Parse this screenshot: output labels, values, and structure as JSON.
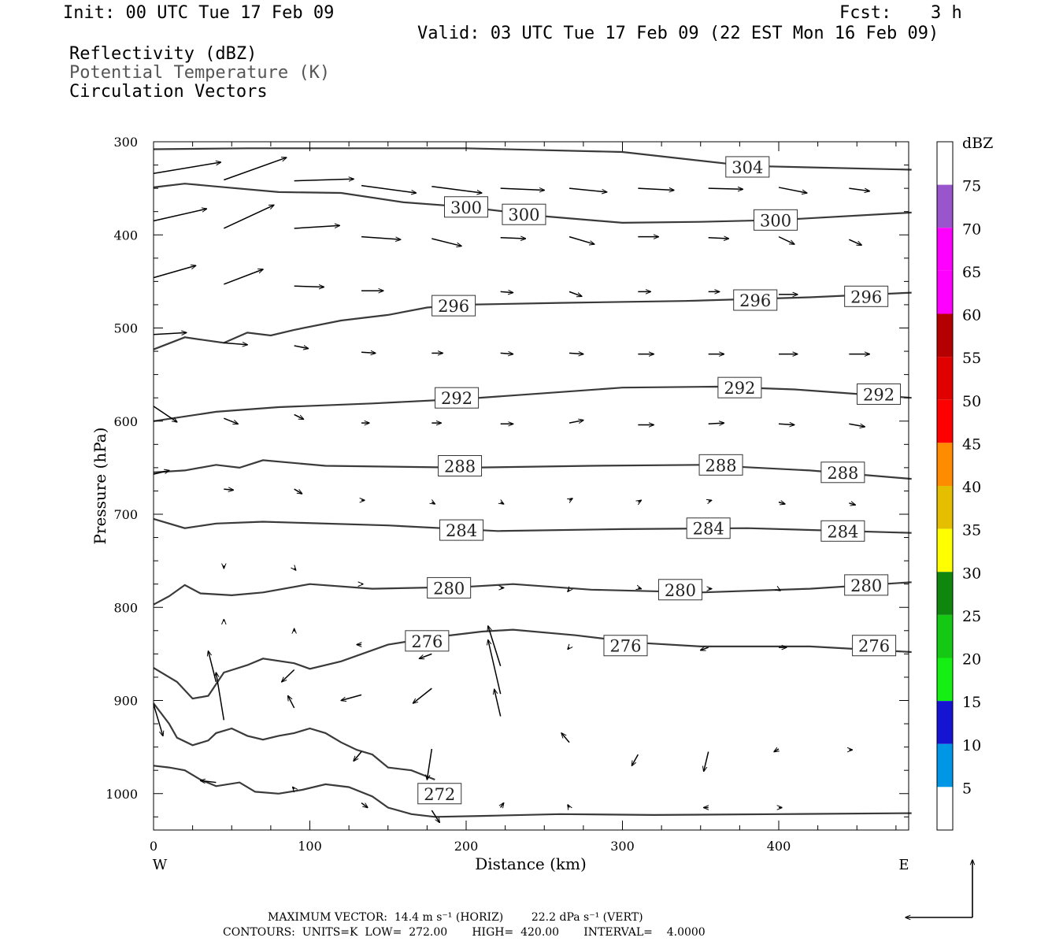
{
  "header": {
    "init": "Init: 00 UTC Tue 17 Feb 09",
    "fcst_label": "Fcst:",
    "fcst_value": "3 h",
    "valid": "Valid: 03 UTC Tue 17 Feb 09 (22 EST Mon 16 Feb 09)",
    "field1": "Reflectivity (dBZ)",
    "field2": "Potential Temperature (K)",
    "field3": "Circulation Vectors"
  },
  "footer": {
    "line1": "MAXIMUM VECTOR:  14.4 m s⁻¹ (HORIZ)        22.2 dPa s⁻¹ (VERT)",
    "line2": "CONTOURS:  UNITS=K  LOW=  272.00       HIGH=  420.00       INTERVAL=    4.0000"
  },
  "colors": {
    "contour": "#3a3a3a",
    "vector": "#000000",
    "axis": "#000000"
  },
  "chart_data": {
    "type": "contour",
    "xlabel": "Distance (km)",
    "ylabel": "Pressure (hPa)",
    "xlim": [
      0,
      485
    ],
    "ylim": [
      300,
      1040
    ],
    "x_ticks": [
      0,
      100,
      200,
      300,
      400
    ],
    "y_ticks": [
      300,
      400,
      500,
      600,
      700,
      800,
      900,
      1000
    ],
    "x_left_label": "W",
    "x_right_label": "E",
    "colorbar": {
      "title": "dBZ",
      "levels": [
        5,
        10,
        15,
        20,
        25,
        30,
        35,
        40,
        45,
        50,
        55,
        60,
        65,
        70,
        75
      ],
      "colors": [
        "#00e5e5",
        "#0096e6",
        "#1414d2",
        "#14f014",
        "#14c814",
        "#0f870f",
        "#ffff00",
        "#e6be00",
        "#ff8c00",
        "#ff0000",
        "#e10000",
        "#b40000",
        "#ff00ff",
        "#ff00ff",
        "#9955cc"
      ]
    },
    "contours": [
      {
        "label": "304",
        "points": [
          [
            0,
            308
          ],
          [
            60,
            307
          ],
          [
            200,
            307
          ],
          [
            300,
            311
          ],
          [
            380,
            326
          ],
          [
            485,
            330
          ]
        ]
      },
      {
        "label": "300",
        "points": [
          [
            0,
            349
          ],
          [
            20,
            345
          ],
          [
            40,
            348
          ],
          [
            80,
            354
          ],
          [
            120,
            355
          ],
          [
            160,
            365
          ],
          [
            200,
            370
          ],
          [
            250,
            380
          ],
          [
            300,
            387
          ],
          [
            350,
            386
          ],
          [
            400,
            384
          ],
          [
            485,
            376
          ]
        ]
      },
      {
        "label": "296",
        "points": [
          [
            0,
            523
          ],
          [
            20,
            510
          ],
          [
            45,
            516
          ],
          [
            60,
            505
          ],
          [
            75,
            508
          ],
          [
            90,
            502
          ],
          [
            120,
            492
          ],
          [
            150,
            486
          ],
          [
            175,
            478
          ],
          [
            200,
            475
          ],
          [
            260,
            473
          ],
          [
            340,
            471
          ],
          [
            420,
            467
          ],
          [
            485,
            462
          ]
        ]
      },
      {
        "label": "292",
        "points": [
          [
            0,
            600
          ],
          [
            40,
            590
          ],
          [
            80,
            585
          ],
          [
            140,
            581
          ],
          [
            200,
            576
          ],
          [
            250,
            570
          ],
          [
            300,
            564
          ],
          [
            360,
            563
          ],
          [
            410,
            566
          ],
          [
            485,
            575
          ]
        ]
      },
      {
        "label": "288",
        "points": [
          [
            0,
            655
          ],
          [
            20,
            653
          ],
          [
            40,
            647
          ],
          [
            55,
            650
          ],
          [
            70,
            642
          ],
          [
            110,
            648
          ],
          [
            200,
            650
          ],
          [
            280,
            648
          ],
          [
            350,
            647
          ],
          [
            420,
            653
          ],
          [
            485,
            662
          ]
        ]
      },
      {
        "label": "284",
        "points": [
          [
            0,
            705
          ],
          [
            20,
            715
          ],
          [
            40,
            710
          ],
          [
            70,
            708
          ],
          [
            150,
            712
          ],
          [
            220,
            718
          ],
          [
            300,
            716
          ],
          [
            380,
            715
          ],
          [
            485,
            720
          ]
        ]
      },
      {
        "label": "280",
        "points": [
          [
            0,
            797
          ],
          [
            10,
            788
          ],
          [
            20,
            776
          ],
          [
            30,
            785
          ],
          [
            50,
            787
          ],
          [
            70,
            784
          ],
          [
            100,
            775
          ],
          [
            140,
            780
          ],
          [
            200,
            778
          ],
          [
            230,
            775
          ],
          [
            280,
            781
          ],
          [
            350,
            784
          ],
          [
            420,
            780
          ],
          [
            485,
            773
          ]
        ]
      },
      {
        "label": "276",
        "points": [
          [
            0,
            865
          ],
          [
            15,
            880
          ],
          [
            25,
            898
          ],
          [
            35,
            895
          ],
          [
            45,
            870
          ],
          [
            60,
            862
          ],
          [
            70,
            855
          ],
          [
            90,
            860
          ],
          [
            100,
            866
          ],
          [
            120,
            858
          ],
          [
            150,
            840
          ],
          [
            180,
            832
          ],
          [
            210,
            826
          ],
          [
            230,
            824
          ],
          [
            270,
            830
          ],
          [
            310,
            838
          ],
          [
            350,
            842
          ],
          [
            420,
            842
          ],
          [
            485,
            848
          ]
        ]
      },
      {
        "label": "",
        "points": [
          [
            0,
            903
          ],
          [
            10,
            925
          ],
          [
            15,
            940
          ],
          [
            25,
            948
          ],
          [
            35,
            943
          ],
          [
            40,
            935
          ],
          [
            50,
            930
          ],
          [
            60,
            938
          ],
          [
            70,
            942
          ],
          [
            80,
            938
          ],
          [
            90,
            935
          ],
          [
            100,
            930
          ],
          [
            110,
            935
          ],
          [
            120,
            945
          ],
          [
            130,
            953
          ],
          [
            140,
            958
          ],
          [
            150,
            972
          ],
          [
            165,
            975
          ],
          [
            180,
            985
          ]
        ]
      },
      {
        "label": "272",
        "points": [
          [
            0,
            970
          ],
          [
            10,
            972
          ],
          [
            20,
            975
          ],
          [
            30,
            985
          ],
          [
            40,
            992
          ],
          [
            55,
            988
          ],
          [
            65,
            998
          ],
          [
            80,
            1000
          ],
          [
            95,
            996
          ],
          [
            110,
            990
          ],
          [
            125,
            993
          ],
          [
            140,
            1003
          ],
          [
            150,
            1015
          ],
          [
            165,
            1022
          ],
          [
            180,
            1025
          ],
          [
            210,
            1024
          ],
          [
            260,
            1022
          ],
          [
            320,
            1023
          ],
          [
            400,
            1022
          ],
          [
            485,
            1021
          ]
        ]
      }
    ],
    "contour_labels": [
      {
        "text": "304",
        "x": 380,
        "y": 327
      },
      {
        "text": "300",
        "x": 200,
        "y": 370
      },
      {
        "text": "300",
        "x": 237,
        "y": 378
      },
      {
        "text": "300",
        "x": 398,
        "y": 384
      },
      {
        "text": "296",
        "x": 192,
        "y": 476
      },
      {
        "text": "296",
        "x": 385,
        "y": 470
      },
      {
        "text": "296",
        "x": 456,
        "y": 466
      },
      {
        "text": "292",
        "x": 194,
        "y": 575
      },
      {
        "text": "292",
        "x": 375,
        "y": 564
      },
      {
        "text": "292",
        "x": 464,
        "y": 571
      },
      {
        "text": "288",
        "x": 196,
        "y": 648
      },
      {
        "text": "288",
        "x": 363,
        "y": 647
      },
      {
        "text": "288",
        "x": 441,
        "y": 655
      },
      {
        "text": "284",
        "x": 197,
        "y": 717
      },
      {
        "text": "284",
        "x": 355,
        "y": 715
      },
      {
        "text": "284",
        "x": 441,
        "y": 718
      },
      {
        "text": "280",
        "x": 189,
        "y": 779
      },
      {
        "text": "280",
        "x": 337,
        "y": 781
      },
      {
        "text": "280",
        "x": 456,
        "y": 776
      },
      {
        "text": "276",
        "x": 175,
        "y": 836
      },
      {
        "text": "276",
        "x": 302,
        "y": 841
      },
      {
        "text": "276",
        "x": 461,
        "y": 841
      },
      {
        "text": "272",
        "x": 183,
        "y": 1000
      }
    ],
    "vectors": [
      [
        0,
        334,
        43,
        322
      ],
      [
        45,
        341,
        85,
        317
      ],
      [
        90,
        342,
        128,
        340
      ],
      [
        133,
        347,
        168,
        355
      ],
      [
        178,
        348,
        210,
        355
      ],
      [
        222,
        350,
        250,
        352
      ],
      [
        266,
        350,
        290,
        354
      ],
      [
        310,
        350,
        333,
        352
      ],
      [
        355,
        350,
        377,
        351
      ],
      [
        400,
        349,
        418,
        355
      ],
      [
        445,
        350,
        458,
        353
      ],
      [
        0,
        385,
        34,
        372
      ],
      [
        45,
        393,
        77,
        368
      ],
      [
        90,
        393,
        119,
        390
      ],
      [
        133,
        402,
        158,
        405
      ],
      [
        178,
        404,
        197,
        412
      ],
      [
        222,
        403,
        238,
        404
      ],
      [
        266,
        402,
        282,
        410
      ],
      [
        310,
        402,
        323,
        402
      ],
      [
        355,
        403,
        368,
        404
      ],
      [
        400,
        402,
        410,
        410
      ],
      [
        445,
        405,
        453,
        411
      ],
      [
        0,
        446,
        27,
        433
      ],
      [
        45,
        453,
        70,
        437
      ],
      [
        90,
        455,
        109,
        456
      ],
      [
        133,
        460,
        147,
        460
      ],
      [
        222,
        461,
        230,
        462
      ],
      [
        266,
        461,
        274,
        466
      ],
      [
        310,
        461,
        318,
        461
      ],
      [
        355,
        461,
        362,
        461
      ],
      [
        400,
        464,
        412,
        464
      ],
      [
        0,
        507,
        21,
        505
      ],
      [
        45,
        516,
        60,
        518
      ],
      [
        90,
        519,
        99,
        522
      ],
      [
        133,
        526,
        142,
        527
      ],
      [
        178,
        527,
        185,
        527
      ],
      [
        222,
        527,
        230,
        528
      ],
      [
        266,
        527,
        275,
        528
      ],
      [
        310,
        528,
        320,
        528
      ],
      [
        355,
        528,
        365,
        528
      ],
      [
        400,
        528,
        412,
        528
      ],
      [
        445,
        528,
        458,
        528
      ],
      [
        0,
        584,
        15,
        601
      ],
      [
        45,
        597,
        54,
        603
      ],
      [
        90,
        593,
        96,
        598
      ],
      [
        133,
        602,
        138,
        602
      ],
      [
        178,
        602,
        184,
        602
      ],
      [
        222,
        603,
        230,
        603
      ],
      [
        266,
        602,
        275,
        599
      ],
      [
        310,
        604,
        320,
        604
      ],
      [
        355,
        603,
        365,
        602
      ],
      [
        400,
        603,
        410,
        604
      ],
      [
        445,
        603,
        455,
        606
      ],
      [
        0,
        657,
        10,
        653
      ],
      [
        45,
        673,
        51,
        674
      ],
      [
        90,
        673,
        95,
        678
      ],
      [
        133,
        685,
        135,
        685
      ],
      [
        178,
        687,
        180,
        689
      ],
      [
        222,
        687,
        224,
        689
      ],
      [
        266,
        685,
        268,
        683
      ],
      [
        310,
        687,
        312,
        685
      ],
      [
        355,
        686,
        357,
        685
      ],
      [
        400,
        687,
        404,
        689
      ],
      [
        445,
        688,
        449,
        690
      ],
      [
        45,
        755,
        45,
        758
      ],
      [
        90,
        758,
        91,
        760
      ],
      [
        133,
        775,
        134,
        775
      ],
      [
        222,
        779,
        224,
        779
      ],
      [
        266,
        781,
        265,
        783
      ],
      [
        310,
        779,
        312,
        780
      ],
      [
        355,
        780,
        357,
        780
      ],
      [
        400,
        781,
        401,
        782
      ],
      [
        45,
        815,
        45,
        813
      ],
      [
        90,
        826,
        90,
        823
      ],
      [
        133,
        840,
        130,
        840
      ],
      [
        178,
        850,
        170,
        855
      ],
      [
        266,
        843,
        265,
        845
      ],
      [
        355,
        843,
        350,
        846
      ],
      [
        400,
        843,
        405,
        843
      ],
      [
        45,
        921,
        40,
        870
      ],
      [
        40,
        880,
        35,
        847
      ],
      [
        90,
        867,
        82,
        880
      ],
      [
        133,
        894,
        120,
        900
      ],
      [
        178,
        887,
        166,
        903
      ],
      [
        222,
        917,
        218,
        888
      ],
      [
        222,
        893,
        214,
        835
      ],
      [
        222,
        863,
        214,
        820
      ],
      [
        0,
        904,
        6,
        938
      ],
      [
        90,
        908,
        86,
        895
      ],
      [
        133,
        955,
        128,
        965
      ],
      [
        178,
        952,
        175,
        985
      ],
      [
        266,
        945,
        261,
        935
      ],
      [
        310,
        958,
        306,
        970
      ],
      [
        355,
        955,
        352,
        976
      ],
      [
        400,
        952,
        397,
        955
      ],
      [
        445,
        953,
        447,
        953
      ],
      [
        40,
        988,
        30,
        986
      ],
      [
        90,
        995,
        89,
        993
      ],
      [
        133,
        1010,
        137,
        1015
      ],
      [
        178,
        1018,
        183,
        1031
      ],
      [
        222,
        1015,
        224,
        1010
      ],
      [
        266,
        1015,
        265,
        1012
      ],
      [
        355,
        1015,
        352,
        1015
      ],
      [
        400,
        1015,
        402,
        1015
      ]
    ]
  }
}
